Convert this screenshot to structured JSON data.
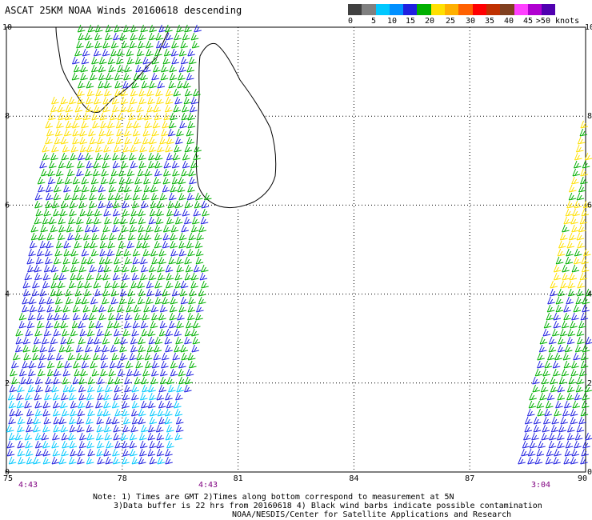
{
  "title": "ASCAT 25KM NOAA Winds 20160618 descending",
  "legend": {
    "colors": [
      "#404040",
      "#808080",
      "#00c8ff",
      "#0090ff",
      "#2020e0",
      "#00b000",
      "#ffe000",
      "#ffb000",
      "#ff6000",
      "#ff0000",
      "#c03000",
      "#804020",
      "#ff40ff",
      "#b000d0",
      "#5000b0"
    ],
    "labels": [
      "0",
      "5",
      "10",
      "15",
      "20",
      "25",
      "30",
      "35",
      "40",
      "45",
      ">50 knots"
    ]
  },
  "axes": {
    "x_ticks": [
      "75",
      "78",
      "81",
      "84",
      "87",
      "90"
    ],
    "y_ticks": [
      "0",
      "2",
      "4",
      "6",
      "8",
      "10"
    ],
    "x_range": [
      75,
      90
    ],
    "y_range": [
      0,
      10
    ]
  },
  "time_labels": [
    "4:43",
    "4:43",
    "3:04"
  ],
  "notes": {
    "line1": "Note: 1) Times are GMT 2)Times along bottom correspond to measurement at 5N",
    "line2": "3)Data buffer is 22 hrs from 20160618 4) Black wind barbs indicate possible contamination",
    "line3": "NOAA/NESDIS/Center for Satellite Applications and Research"
  }
}
